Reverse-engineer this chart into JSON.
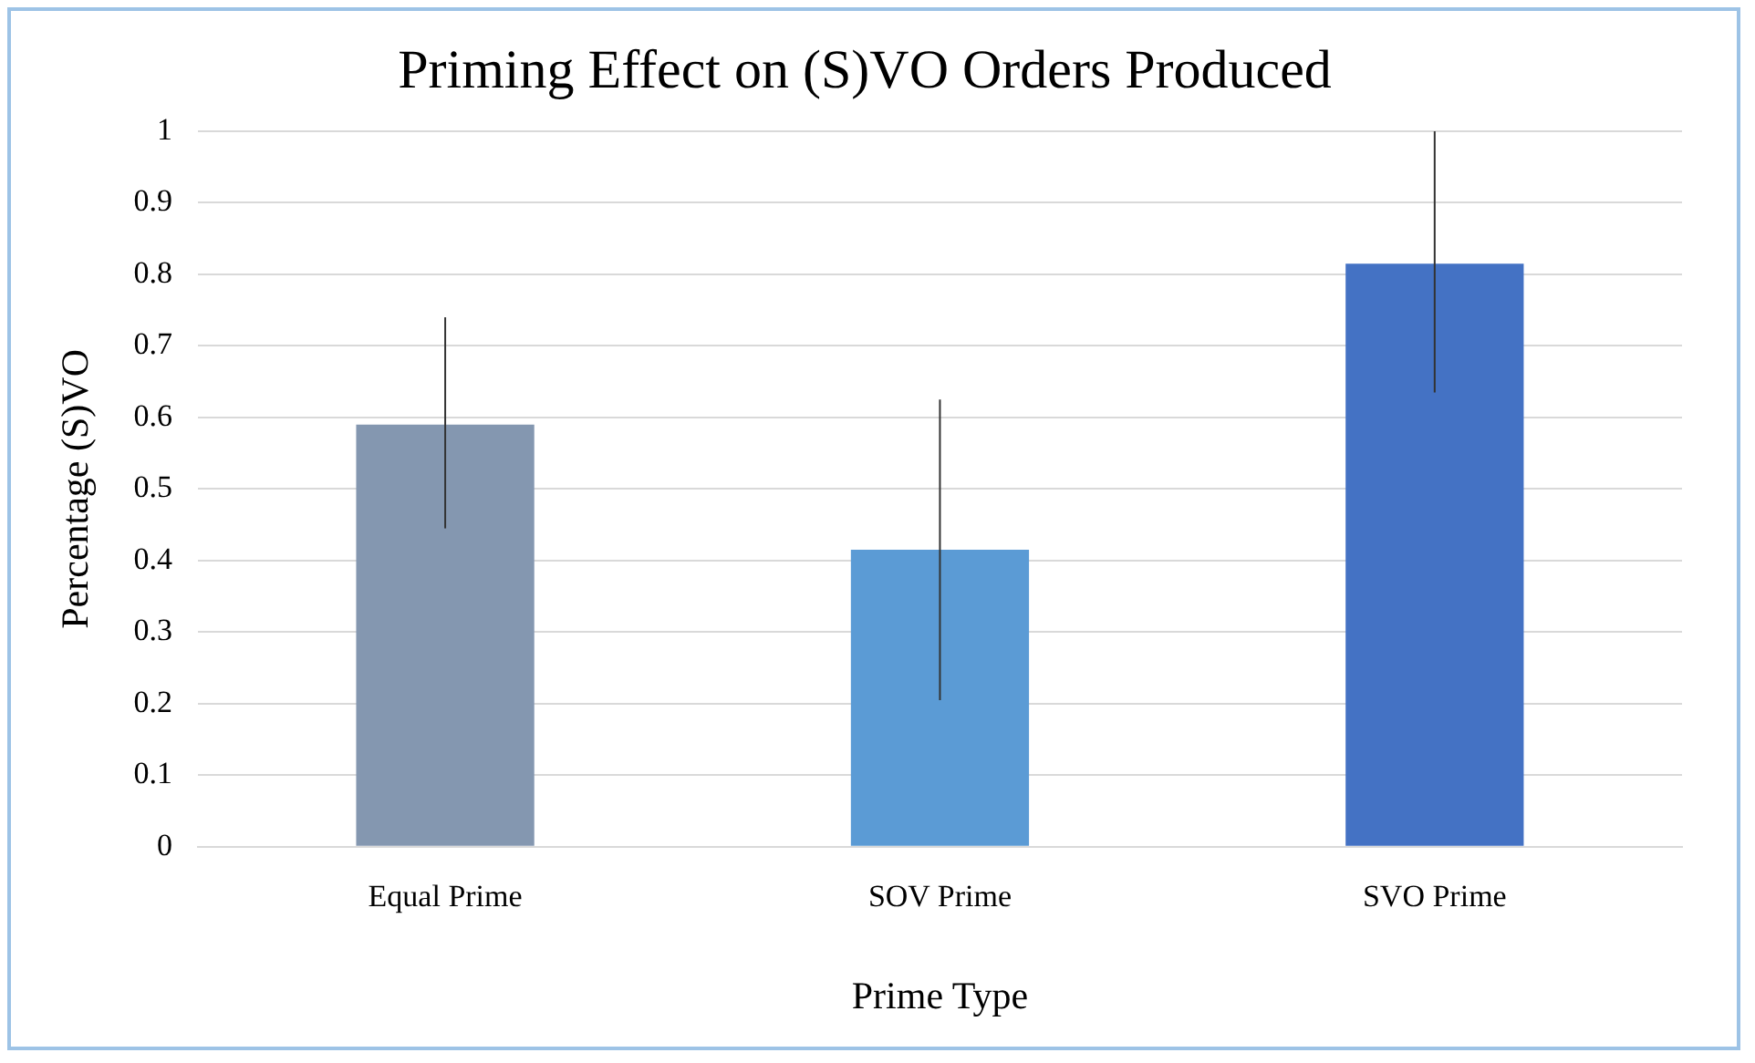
{
  "chart_data": {
    "type": "bar",
    "title": "Priming Effect on (S)VO Orders Produced",
    "xlabel": "Prime Type",
    "ylabel": "Percentage (S)VO",
    "categories": [
      "Equal Prime",
      "SOV Prime",
      "SVO Prime"
    ],
    "values": [
      0.59,
      0.415,
      0.815
    ],
    "colors": [
      "#8497b0",
      "#5b9bd5",
      "#4472c4"
    ],
    "errors": [
      [
        0.445,
        0.74
      ],
      [
        0.205,
        0.625
      ],
      [
        0.635,
        1.0
      ]
    ],
    "ylim": [
      0,
      1
    ],
    "yticks": [
      0,
      0.1,
      0.2,
      0.3,
      0.4,
      0.5,
      0.6,
      0.7,
      0.8,
      0.9,
      1
    ],
    "grid": "y",
    "legend": false
  }
}
